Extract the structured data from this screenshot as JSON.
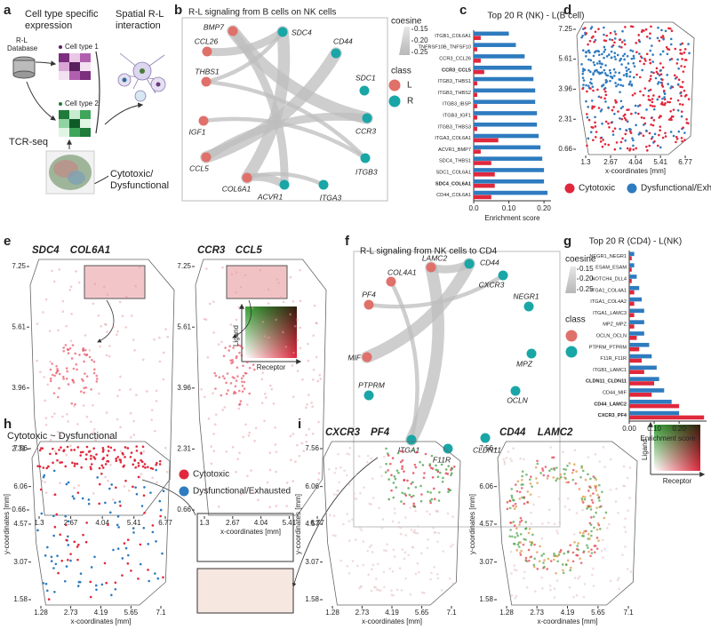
{
  "panels": {
    "a": {
      "label": "a",
      "title_left": [
        "Cell type specific",
        "expression"
      ],
      "title_right": [
        "Spatial R-L",
        "interaction"
      ],
      "database": [
        "R-L",
        "Database"
      ],
      "cell_type_1": "Cell type 1",
      "cell_type_2": "Cell type 2",
      "tcr": "TCR-seq",
      "outcome": [
        "Cytotoxic/",
        "Dysfunctional"
      ]
    },
    "b": {
      "label": "b",
      "title": "R-L signaling from B cells on NK cells",
      "legend_size_title": "coesine",
      "legend_sizes": [
        {
          "value": 0.15,
          "label": "0.15"
        },
        {
          "value": 0.2,
          "label": "0.20"
        },
        {
          "value": 0.25,
          "label": "0.25"
        }
      ],
      "legend_class_title": "class",
      "classes": [
        {
          "name": "L",
          "color": "#e0706a"
        },
        {
          "name": "R",
          "color": "#1aa6a6"
        }
      ],
      "nodes": [
        {
          "label": "BMP7",
          "class": 0
        },
        {
          "label": "SDC4",
          "class": 1
        },
        {
          "label": "CD44",
          "class": 1
        },
        {
          "label": "CCL26",
          "class": 0
        },
        {
          "label": "SDC1",
          "class": 1
        },
        {
          "label": "THBS1",
          "class": 0
        },
        {
          "label": "IGF1",
          "class": 0
        },
        {
          "label": "CCR3",
          "class": 1
        },
        {
          "label": "CCL5",
          "class": 0
        },
        {
          "label": "ITGB3",
          "class": 1
        },
        {
          "label": "COL6A1",
          "class": 0
        },
        {
          "label": "ACVR1",
          "class": 1
        },
        {
          "label": "ITGA3",
          "class": 1
        }
      ],
      "edges": [
        {
          "from": "BMP7",
          "to": "CCR3",
          "cosine": 0.25
        },
        {
          "from": "CCL26",
          "to": "SDC4",
          "cosine": 0.2
        },
        {
          "from": "THBS1",
          "to": "SDC4",
          "cosine": 0.15
        },
        {
          "from": "IGF1",
          "to": "ITGB3",
          "cosine": 0.15
        },
        {
          "from": "CCL5",
          "to": "CD44",
          "cosine": 0.25
        },
        {
          "from": "CCL5",
          "to": "CCR3",
          "cosine": 0.2
        },
        {
          "from": "COL6A1",
          "to": "SDC4",
          "cosine": 0.25
        },
        {
          "from": "COL6A1",
          "to": "ITGA3",
          "cosine": 0.15
        },
        {
          "from": "COL6A1",
          "to": "ACVR1",
          "cosine": 0.2
        },
        {
          "from": "BMP7",
          "to": "ACVR1",
          "cosine": 0.2
        },
        {
          "from": "THBS1",
          "to": "ITGB3",
          "cosine": 0.15
        }
      ]
    },
    "c": {
      "label": "c"
    },
    "d": {
      "label": "d",
      "map": {
        "xticks": [
          1.3,
          2.67,
          4.04,
          5.41,
          6.77
        ],
        "xlim": [
          1.3,
          6.77
        ],
        "yticks": [
          0.66,
          2.31,
          3.96,
          5.61,
          7.25
        ],
        "ylim": [
          0.66,
          7.25
        ],
        "xlabel": "x-coordinates [mm]"
      },
      "legend": [
        {
          "name": "Cytotoxic",
          "color": "#e0283c"
        },
        {
          "name": "Dysfunctional/Exhausted",
          "color": "#2e7bbf"
        }
      ]
    },
    "e": {
      "label": "e",
      "maps": [
        {
          "genes": [
            "SDC4",
            "COL6A1"
          ],
          "xticks": [
            1.3,
            2.67,
            4.04,
            5.41,
            6.77
          ],
          "xlim": [
            1.3,
            6.77
          ],
          "yticks": [
            0.66,
            2.31,
            3.96,
            5.61,
            7.25
          ],
          "ylim": [
            0.66,
            7.25
          ]
        },
        {
          "genes": [
            "CCR3",
            "CCL5"
          ],
          "xticks": [
            1.3,
            2.67,
            4.04,
            5.41,
            6.77
          ],
          "xlim": [
            1.3,
            6.77
          ],
          "yticks": [
            0.66,
            2.31,
            3.96,
            5.61,
            7.25
          ],
          "ylim": [
            0.66,
            7.25
          ],
          "xlabel": "x-coordinates [mm]"
        }
      ],
      "color_key": {
        "y": "Ligand",
        "x": "Receptor"
      }
    },
    "f": {
      "label": "f",
      "title": "R-L signaling from NK cells to CD4",
      "legend_size_title": "coesine",
      "legend_sizes": [
        {
          "value": 0.15,
          "label": "0.15"
        },
        {
          "value": 0.2,
          "label": "0.20"
        },
        {
          "value": 0.25,
          "label": "0.25"
        }
      ],
      "legend_class_title": "class",
      "classes": [
        {
          "color": "#e0706a"
        },
        {
          "color": "#1aa6a6"
        }
      ],
      "nodes": [
        {
          "label": "LAMC2",
          "class": 0
        },
        {
          "label": "CD44",
          "class": 1
        },
        {
          "label": "COL4A1",
          "class": 0
        },
        {
          "label": "CXCR3",
          "class": 1
        },
        {
          "label": "NEGR1",
          "class": 1
        },
        {
          "label": "PF4",
          "class": 0
        },
        {
          "label": "MIF",
          "class": 0
        },
        {
          "label": "MPZ",
          "class": 1
        },
        {
          "label": "PTPRM",
          "class": 1
        },
        {
          "label": "OCLN",
          "class": 1
        },
        {
          "label": "ITGA1",
          "class": 1
        },
        {
          "label": "F11R",
          "class": 1
        },
        {
          "label": "CLDN11",
          "class": 1
        }
      ],
      "edges": [
        {
          "from": "LAMC2",
          "to": "ITGA1",
          "cosine": 0.25
        },
        {
          "from": "CD44",
          "to": "MIF",
          "cosine": 0.25
        },
        {
          "from": "LAMC2",
          "to": "CD44",
          "cosine": 0.2
        },
        {
          "from": "COL4A1",
          "to": "ITGA1",
          "cosine": 0.15
        },
        {
          "from": "PF4",
          "to": "CXCR3",
          "cosine": 0.15
        }
      ]
    },
    "g": {
      "label": "g"
    },
    "h": {
      "label": "h",
      "title": "Cytotoxic ~ Dysfunctional",
      "map": {
        "xticks": [
          1.28,
          2.73,
          4.19,
          5.65,
          7.1
        ],
        "xlim": [
          1.28,
          7.1
        ],
        "yticks": [
          1.58,
          3.07,
          4.57,
          6.06,
          7.56
        ],
        "ylim": [
          1.58,
          7.56
        ],
        "xlabel": "x-coordinates [mm]",
        "ylabel": "y-coordinates [mm]"
      },
      "legend": [
        {
          "name": "Cytotoxic",
          "color": "#e0283c"
        },
        {
          "name": "Dysfunctional/Exhausted",
          "color": "#2e7bbf"
        }
      ]
    },
    "i": {
      "label": "i",
      "maps": [
        {
          "genes": [
            "CXCR3",
            "PF4"
          ],
          "xticks": [
            1.28,
            2.73,
            4.19,
            5.65,
            7.1
          ],
          "xlim": [
            1.28,
            7.1
          ],
          "yticks": [
            1.58,
            3.07,
            4.57,
            6.06,
            7.56
          ],
          "ylim": [
            1.58,
            7.56
          ],
          "xlabel": "x-coordinates [mm]",
          "ylabel": "y-coordinates [mm]"
        },
        {
          "genes": [
            "CD44",
            "LAMC2"
          ],
          "xticks": [
            1.28,
            2.73,
            4.19,
            5.65,
            7.1
          ],
          "xlim": [
            1.28,
            7.1
          ],
          "yticks": [
            1.58,
            3.07,
            4.57,
            6.06,
            7.56
          ],
          "ylim": [
            1.58,
            7.56
          ],
          "xlabel": "x-coordinates [mm]",
          "ylabel": "y-coordinates [mm]"
        }
      ],
      "color_key": {
        "y": "Ligand",
        "x": "Receptor"
      }
    }
  },
  "chart_data": [
    {
      "type": "bar",
      "orientation": "horizontal",
      "title": "Top 20 R (NK) - L(B cell)",
      "categories": [
        "ITGB1_COL6A1",
        "TNFRSF10B_TNFSF10",
        "CCR3_CCL26",
        "CCR3_CCL5",
        "ITGB3_THBS1",
        "ITGB3_THBS2",
        "ITGB3_IBSP",
        "ITGB3_IGF1",
        "ITGB3_THBS3",
        "ITGA3_COL6A1",
        "ACVR1_BMP7",
        "SDC4_THBS1",
        "SDC1_COL6A1",
        "SDC4_COL6A1",
        "CD44_COL6A1"
      ],
      "bold": [
        3,
        13
      ],
      "series": [
        {
          "color": "#2e7bbf",
          "values": [
            0.1,
            0.12,
            0.145,
            0.165,
            0.17,
            0.175,
            0.175,
            0.18,
            0.18,
            0.185,
            0.19,
            0.195,
            0.2,
            0.2,
            0.21
          ]
        },
        {
          "color": "#e0283c",
          "values": [
            0.02,
            0.01,
            0.02,
            0.03,
            0.01,
            0.01,
            0.01,
            0.01,
            0.01,
            0.07,
            0.02,
            0.05,
            0.06,
            0.06,
            0.05
          ]
        }
      ],
      "xlim": [
        0,
        0.22
      ],
      "xticks": [
        {
          "value": 0,
          "label": "0.0"
        },
        {
          "value": 0.1,
          "label": "0.10"
        },
        {
          "value": 0.2,
          "label": "0.20"
        }
      ],
      "xlabel": "Enrichment score"
    },
    {
      "type": "bar",
      "orientation": "horizontal",
      "title": "Top 20 R (CD4) - L(NK)",
      "categories": [
        "NEGR1_NEGR1",
        "ESAM_ESAM",
        "NOTCH4_DLL4",
        "ITGA1_COL4A1",
        "ITGA1_COL4A2",
        "ITGA1_LAMC3",
        "MPZ_MPZ",
        "OCLN_OCLN",
        "PTPRM_PTPRM",
        "F11R_F11R",
        "ITGB1_LAMC1",
        "CLDN11_CLDN11",
        "CD44_MIF",
        "CD44_LAMC2",
        "CXCR3_PF4"
      ],
      "bold": [
        11,
        13,
        14
      ],
      "series": [
        {
          "color": "#2e7bbf",
          "values": [
            0.02,
            0.02,
            0.03,
            0.04,
            0.05,
            0.06,
            0.06,
            0.06,
            0.08,
            0.09,
            0.11,
            0.12,
            0.14,
            0.17,
            0.2
          ]
        },
        {
          "color": "#e0283c",
          "values": [
            0.01,
            0.01,
            0.01,
            0.02,
            0.02,
            0.02,
            0.02,
            0.03,
            0.04,
            0.05,
            0.06,
            0.1,
            0.09,
            0.2,
            0.3
          ]
        }
      ],
      "xlim": [
        0,
        0.31
      ],
      "xticks": [
        {
          "value": 0,
          "label": "0.00"
        },
        {
          "value": 0.1,
          "label": "0.10"
        },
        {
          "value": 0.2,
          "label": "0.20"
        }
      ],
      "xlabel": "Enrichment score"
    }
  ]
}
